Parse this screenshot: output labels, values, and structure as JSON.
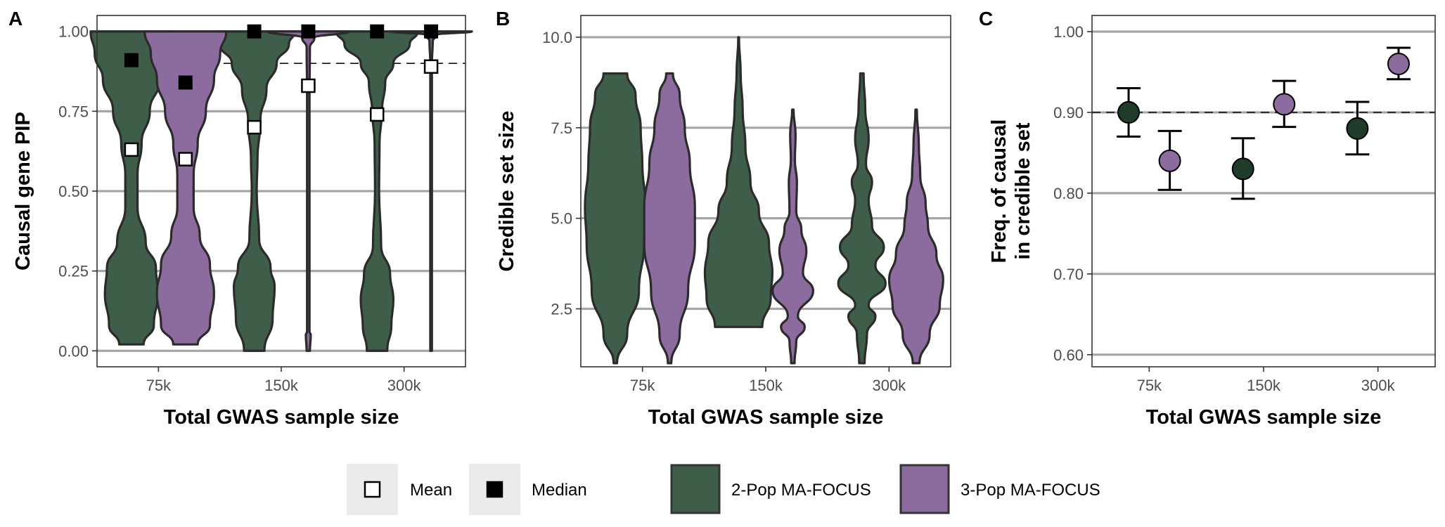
{
  "legend": {
    "stat_items": [
      {
        "label": "Mean",
        "fill": "#ffffff"
      },
      {
        "label": "Median",
        "fill": "#000000"
      }
    ],
    "method_items": [
      {
        "label": "2-Pop MA-FOCUS",
        "color": "#3f5e4a"
      },
      {
        "label": "3-Pop MA-FOCUS",
        "color": "#8c6b9e"
      }
    ]
  },
  "chart_data": [
    {
      "panel": "A",
      "type": "violin",
      "xlabel": "Total GWAS sample size",
      "ylabel": "Causal gene PIP",
      "categories": [
        "75k",
        "150k",
        "300k"
      ],
      "ylim": [
        -0.05,
        1.05
      ],
      "yticks": [
        0.0,
        0.25,
        0.5,
        0.75,
        1.0
      ],
      "ytick_labels": [
        "0.00",
        "0.25",
        "0.50",
        "0.75",
        "1.00"
      ],
      "reference_line": 0.9,
      "grid": true,
      "series": [
        {
          "name": "2-Pop MA-FOCUS",
          "color": "#3f5e4a",
          "violins": [
            {
              "category": "75k",
              "mean": 0.63,
              "median": 0.91,
              "min": 0.02,
              "max": 1.0,
              "profile": [
                [
                  0.02,
                  0.3
                ],
                [
                  0.08,
                  0.55
                ],
                [
                  0.18,
                  0.65
                ],
                [
                  0.26,
                  0.6
                ],
                [
                  0.34,
                  0.35
                ],
                [
                  0.45,
                  0.15
                ],
                [
                  0.55,
                  0.15
                ],
                [
                  0.65,
                  0.25
                ],
                [
                  0.75,
                  0.45
                ],
                [
                  0.85,
                  0.7
                ],
                [
                  0.93,
                  0.9
                ],
                [
                  1.0,
                  1.0
                ]
              ]
            },
            {
              "category": "150k",
              "mean": 0.7,
              "median": 1.0,
              "min": 0.0,
              "max": 1.0,
              "profile": [
                [
                  0.0,
                  0.25
                ],
                [
                  0.1,
                  0.45
                ],
                [
                  0.2,
                  0.5
                ],
                [
                  0.26,
                  0.4
                ],
                [
                  0.35,
                  0.12
                ],
                [
                  0.5,
                  0.06
                ],
                [
                  0.6,
                  0.08
                ],
                [
                  0.72,
                  0.15
                ],
                [
                  0.82,
                  0.3
                ],
                [
                  0.9,
                  0.55
                ],
                [
                  0.96,
                  0.85
                ],
                [
                  1.0,
                  1.0
                ]
              ]
            },
            {
              "category": "300k",
              "mean": 0.74,
              "median": 1.0,
              "min": 0.0,
              "max": 1.0,
              "profile": [
                [
                  0.0,
                  0.25
                ],
                [
                  0.08,
                  0.35
                ],
                [
                  0.16,
                  0.4
                ],
                [
                  0.24,
                  0.32
                ],
                [
                  0.33,
                  0.1
                ],
                [
                  0.5,
                  0.05
                ],
                [
                  0.65,
                  0.06
                ],
                [
                  0.75,
                  0.12
                ],
                [
                  0.84,
                  0.2
                ],
                [
                  0.9,
                  0.4
                ],
                [
                  0.96,
                  0.8
                ],
                [
                  1.0,
                  1.0
                ]
              ]
            }
          ]
        },
        {
          "name": "3-Pop MA-FOCUS",
          "color": "#8c6b9e",
          "violins": [
            {
              "category": "75k",
              "mean": 0.6,
              "median": 0.84,
              "min": 0.02,
              "max": 1.0,
              "profile": [
                [
                  0.02,
                  0.3
                ],
                [
                  0.08,
                  0.6
                ],
                [
                  0.18,
                  0.7
                ],
                [
                  0.27,
                  0.6
                ],
                [
                  0.36,
                  0.35
                ],
                [
                  0.45,
                  0.2
                ],
                [
                  0.55,
                  0.2
                ],
                [
                  0.65,
                  0.3
                ],
                [
                  0.75,
                  0.5
                ],
                [
                  0.85,
                  0.7
                ],
                [
                  0.93,
                  0.85
                ],
                [
                  1.0,
                  1.0
                ]
              ]
            },
            {
              "category": "150k",
              "mean": 0.83,
              "median": 1.0,
              "min": 0.0,
              "max": 1.0,
              "profile": [
                [
                  0.0,
                  0.04
                ],
                [
                  0.05,
                  0.06
                ],
                [
                  0.06,
                  0.03
                ],
                [
                  0.2,
                  0.03
                ],
                [
                  0.5,
                  0.03
                ],
                [
                  0.8,
                  0.03
                ],
                [
                  0.95,
                  0.04
                ],
                [
                  0.98,
                  0.15
                ],
                [
                  1.0,
                  1.0
                ]
              ]
            },
            {
              "category": "300k",
              "mean": 0.89,
              "median": 1.0,
              "min": 0.0,
              "max": 1.0,
              "profile": [
                [
                  0.0,
                  0.02
                ],
                [
                  0.5,
                  0.02
                ],
                [
                  0.9,
                  0.02
                ],
                [
                  0.97,
                  0.04
                ],
                [
                  0.99,
                  0.15
                ],
                [
                  1.0,
                  1.0
                ]
              ]
            }
          ]
        }
      ]
    },
    {
      "panel": "B",
      "type": "violin",
      "xlabel": "Total GWAS sample size",
      "ylabel": "Credible set size",
      "categories": [
        "75k",
        "150k",
        "300k"
      ],
      "ylim": [
        0.9,
        10.6
      ],
      "yticks": [
        2.5,
        5.0,
        7.5,
        10.0
      ],
      "ytick_labels": [
        "2.5",
        "5.0",
        "7.5",
        "10.0"
      ],
      "grid": true,
      "series": [
        {
          "name": "2-Pop MA-FOCUS",
          "color": "#3f5e4a",
          "violins": [
            {
              "category": "75k",
              "min": 1,
              "max": 9,
              "profile": [
                [
                  1,
                  0.05
                ],
                [
                  1.8,
                  0.35
                ],
                [
                  3,
                  0.7
                ],
                [
                  4.3,
                  0.85
                ],
                [
                  5.3,
                  0.9
                ],
                [
                  6.5,
                  0.8
                ],
                [
                  7.5,
                  0.75
                ],
                [
                  8.4,
                  0.6
                ],
                [
                  9,
                  0.35
                ]
              ]
            },
            {
              "category": "150k",
              "min": 2,
              "max": 10,
              "profile": [
                [
                  2,
                  0.7
                ],
                [
                  2.8,
                  0.95
                ],
                [
                  3.5,
                  1.0
                ],
                [
                  4.3,
                  0.9
                ],
                [
                  5.2,
                  0.6
                ],
                [
                  6,
                  0.35
                ],
                [
                  7,
                  0.2
                ],
                [
                  8,
                  0.12
                ],
                [
                  9,
                  0.06
                ],
                [
                  10,
                  0.01
                ]
              ]
            },
            {
              "category": "300k",
              "min": 1,
              "max": 9,
              "profile": [
                [
                  1,
                  0.08
                ],
                [
                  1.8,
                  0.15
                ],
                [
                  2.3,
                  0.4
                ],
                [
                  2.6,
                  0.2
                ],
                [
                  3.2,
                  0.7
                ],
                [
                  3.7,
                  0.4
                ],
                [
                  4.2,
                  0.65
                ],
                [
                  4.8,
                  0.3
                ],
                [
                  5.5,
                  0.2
                ],
                [
                  6,
                  0.3
                ],
                [
                  6.5,
                  0.12
                ],
                [
                  7.2,
                  0.2
                ],
                [
                  8,
                  0.1
                ],
                [
                  9,
                  0.05
                ]
              ]
            }
          ]
        },
        {
          "name": "3-Pop MA-FOCUS",
          "color": "#8c6b9e",
          "violins": [
            {
              "category": "75k",
              "min": 1,
              "max": 9,
              "profile": [
                [
                  1,
                  0.05
                ],
                [
                  1.8,
                  0.3
                ],
                [
                  3,
                  0.55
                ],
                [
                  4.3,
                  0.75
                ],
                [
                  5.3,
                  0.75
                ],
                [
                  6.5,
                  0.6
                ],
                [
                  7.5,
                  0.45
                ],
                [
                  8.4,
                  0.3
                ],
                [
                  9,
                  0.1
                ]
              ]
            },
            {
              "category": "150k",
              "min": 1,
              "max": 8,
              "profile": [
                [
                  1,
                  0.05
                ],
                [
                  1.6,
                  0.1
                ],
                [
                  2,
                  0.35
                ],
                [
                  2.3,
                  0.15
                ],
                [
                  3,
                  0.6
                ],
                [
                  3.5,
                  0.3
                ],
                [
                  4.1,
                  0.4
                ],
                [
                  4.7,
                  0.25
                ],
                [
                  5.2,
                  0.1
                ],
                [
                  6,
                  0.12
                ],
                [
                  6.6,
                  0.06
                ],
                [
                  7.3,
                  0.08
                ],
                [
                  8,
                  0.02
                ]
              ]
            },
            {
              "category": "300k",
              "min": 1,
              "max": 8,
              "profile": [
                [
                  1,
                  0.1
                ],
                [
                  1.8,
                  0.4
                ],
                [
                  2.6,
                  0.7
                ],
                [
                  3.3,
                  0.8
                ],
                [
                  4,
                  0.6
                ],
                [
                  4.8,
                  0.35
                ],
                [
                  5.4,
                  0.28
                ],
                [
                  6.2,
                  0.12
                ],
                [
                  7,
                  0.08
                ],
                [
                  8,
                  0.02
                ]
              ]
            }
          ]
        }
      ]
    },
    {
      "panel": "C",
      "type": "scatter",
      "xlabel": "Total GWAS sample size",
      "ylabel_lines": [
        "Freq. of causal",
        "in credible set"
      ],
      "categories": [
        "75k",
        "150k",
        "300k"
      ],
      "ylim": [
        0.585,
        1.02
      ],
      "yticks": [
        0.6,
        0.7,
        0.8,
        0.9,
        1.0
      ],
      "ytick_labels": [
        "0.60",
        "0.70",
        "0.80",
        "0.90",
        "1.00"
      ],
      "reference_line": 0.9,
      "grid": true,
      "series": [
        {
          "name": "2-Pop MA-FOCUS",
          "color": "#1f3b2a",
          "points": [
            {
              "category": "75k",
              "y": 0.9,
              "lo": 0.87,
              "hi": 0.93
            },
            {
              "category": "150k",
              "y": 0.83,
              "lo": 0.793,
              "hi": 0.868
            },
            {
              "category": "300k",
              "y": 0.88,
              "lo": 0.848,
              "hi": 0.913
            }
          ]
        },
        {
          "name": "3-Pop MA-FOCUS",
          "color": "#8c6b9e",
          "points": [
            {
              "category": "75k",
              "y": 0.84,
              "lo": 0.804,
              "hi": 0.877
            },
            {
              "category": "150k",
              "y": 0.91,
              "lo": 0.882,
              "hi": 0.939
            },
            {
              "category": "300k",
              "y": 0.96,
              "lo": 0.941,
              "hi": 0.98
            }
          ]
        }
      ]
    }
  ]
}
